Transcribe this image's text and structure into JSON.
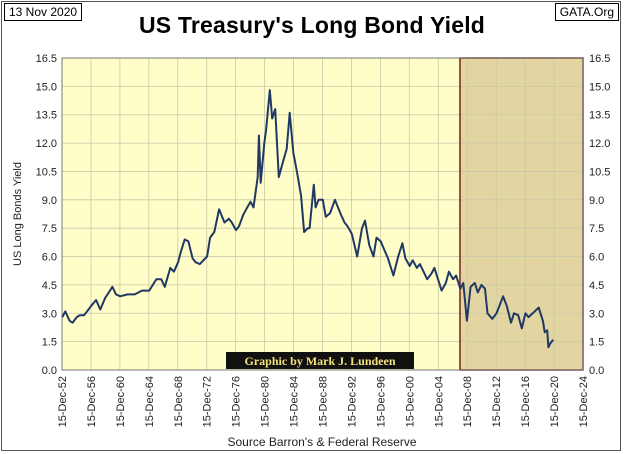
{
  "header": {
    "date_label": "13 Nov 2020",
    "site_label": "GATA.Org"
  },
  "chart_data": {
    "type": "line",
    "title": "US Treasury's Long Bond Yield",
    "ylabel": "US Long Bonds Yield",
    "source": "Source Barron's & Federal Reserve",
    "credit": "Graphic by Mark J. Lundeen",
    "ylim": [
      0,
      16.5
    ],
    "yticks": [
      "0.0",
      "1.5",
      "3.0",
      "4.5",
      "6.0",
      "7.5",
      "9.0",
      "10.5",
      "12.0",
      "13.5",
      "15.0",
      "16.5"
    ],
    "xlim": [
      "15-Dec-52",
      "15-Dec-24"
    ],
    "xticks": [
      "15-Dec-52",
      "15-Dec-56",
      "15-Dec-60",
      "15-Dec-64",
      "15-Dec-68",
      "15-Dec-72",
      "15-Dec-76",
      "15-Dec-80",
      "15-Dec-84",
      "15-Dec-88",
      "15-Dec-92",
      "15-Dec-96",
      "15-Dec-00",
      "15-Dec-04",
      "15-Dec-08",
      "15-Dec-12",
      "15-Dec-16",
      "15-Dec-20",
      "15-Dec-24"
    ],
    "shaded_region": [
      "15-Dec-07",
      "15-Dec-24"
    ],
    "grid": true,
    "colors": {
      "plot_bg": "#fffdc8",
      "shade": "#e3d5a2",
      "line": "#1f3864",
      "border": "#7a1f1f"
    },
    "series": [
      {
        "x": [
          "1953-01",
          "1953-06",
          "1954-01",
          "1954-06",
          "1955-01",
          "1955-06",
          "1956-01",
          "1956-06",
          "1957-01",
          "1957-09",
          "1958-04",
          "1958-12",
          "1959-06",
          "1959-12",
          "1960-06",
          "1961-01",
          "1962-01",
          "1963-01",
          "1964-01",
          "1965-01",
          "1966-01",
          "1966-09",
          "1967-03",
          "1967-12",
          "1968-06",
          "1969-01",
          "1969-06",
          "1969-12",
          "1970-06",
          "1971-01",
          "1971-06",
          "1972-01",
          "1973-01",
          "1973-06",
          "1974-01",
          "1974-09",
          "1975-06",
          "1976-01",
          "1976-06",
          "1977-01",
          "1977-06",
          "1978-01",
          "1978-06",
          "1979-01",
          "1979-06",
          "1980-01",
          "1980-03",
          "1980-06",
          "1980-12",
          "1981-03",
          "1981-09",
          "1982-01",
          "1982-06",
          "1982-12",
          "1983-06",
          "1984-01",
          "1984-06",
          "1984-12",
          "1985-06",
          "1986-01",
          "1986-06",
          "1986-12",
          "1987-03",
          "1987-10",
          "1988-01",
          "1988-06",
          "1989-01",
          "1989-06",
          "1990-01",
          "1990-09",
          "1991-06",
          "1992-01",
          "1992-06",
          "1993-01",
          "1993-10",
          "1994-06",
          "1994-11",
          "1995-06",
          "1996-01",
          "1996-06",
          "1997-01",
          "1998-01",
          "1998-10",
          "1999-06",
          "2000-01",
          "2000-06",
          "2001-01",
          "2001-06",
          "2002-01",
          "2002-06",
          "2003-06",
          "2004-01",
          "2004-06",
          "2005-01",
          "2005-06",
          "2006-01",
          "2006-06",
          "2007-01",
          "2007-06",
          "2008-01",
          "2008-06",
          "2008-12",
          "2009-06",
          "2010-01",
          "2010-06",
          "2010-12",
          "2011-06",
          "2011-10",
          "2012-06",
          "2013-01",
          "2013-12",
          "2014-06",
          "2015-01",
          "2015-06",
          "2016-01",
          "2016-07",
          "2017-01",
          "2017-06",
          "2018-01",
          "2018-11",
          "2019-06",
          "2019-09",
          "2020-01",
          "2020-03",
          "2020-06",
          "2020-11"
        ],
        "values": [
          2.8,
          3.1,
          2.6,
          2.5,
          2.8,
          2.9,
          2.9,
          3.1,
          3.4,
          3.7,
          3.2,
          3.8,
          4.1,
          4.4,
          4.0,
          3.9,
          4.0,
          4.0,
          4.2,
          4.2,
          4.8,
          4.8,
          4.4,
          5.4,
          5.2,
          5.7,
          6.3,
          6.9,
          6.8,
          5.9,
          5.7,
          5.6,
          6.0,
          7.0,
          7.3,
          8.5,
          7.8,
          8.0,
          7.8,
          7.4,
          7.6,
          8.2,
          8.5,
          8.9,
          8.6,
          10.2,
          12.4,
          9.9,
          12.0,
          12.7,
          14.8,
          13.3,
          13.8,
          10.2,
          10.9,
          11.7,
          13.6,
          11.5,
          10.5,
          9.2,
          7.3,
          7.5,
          7.5,
          9.8,
          8.6,
          9.0,
          9.0,
          8.1,
          8.3,
          9.0,
          8.3,
          7.8,
          7.6,
          7.2,
          6.0,
          7.5,
          7.9,
          6.6,
          6.0,
          7.0,
          6.8,
          5.9,
          5.0,
          6.0,
          6.7,
          5.9,
          5.5,
          5.8,
          5.4,
          5.6,
          4.8,
          5.1,
          5.4,
          4.7,
          4.2,
          4.6,
          5.2,
          4.8,
          5.0,
          4.3,
          4.6,
          2.6,
          4.4,
          4.6,
          4.1,
          4.5,
          4.3,
          3.0,
          2.7,
          3.0,
          3.9,
          3.4,
          2.5,
          3.0,
          2.9,
          2.2,
          3.0,
          2.8,
          3.0,
          3.3,
          2.6,
          2.0,
          2.1,
          1.2,
          1.4,
          1.6
        ]
      }
    ]
  }
}
